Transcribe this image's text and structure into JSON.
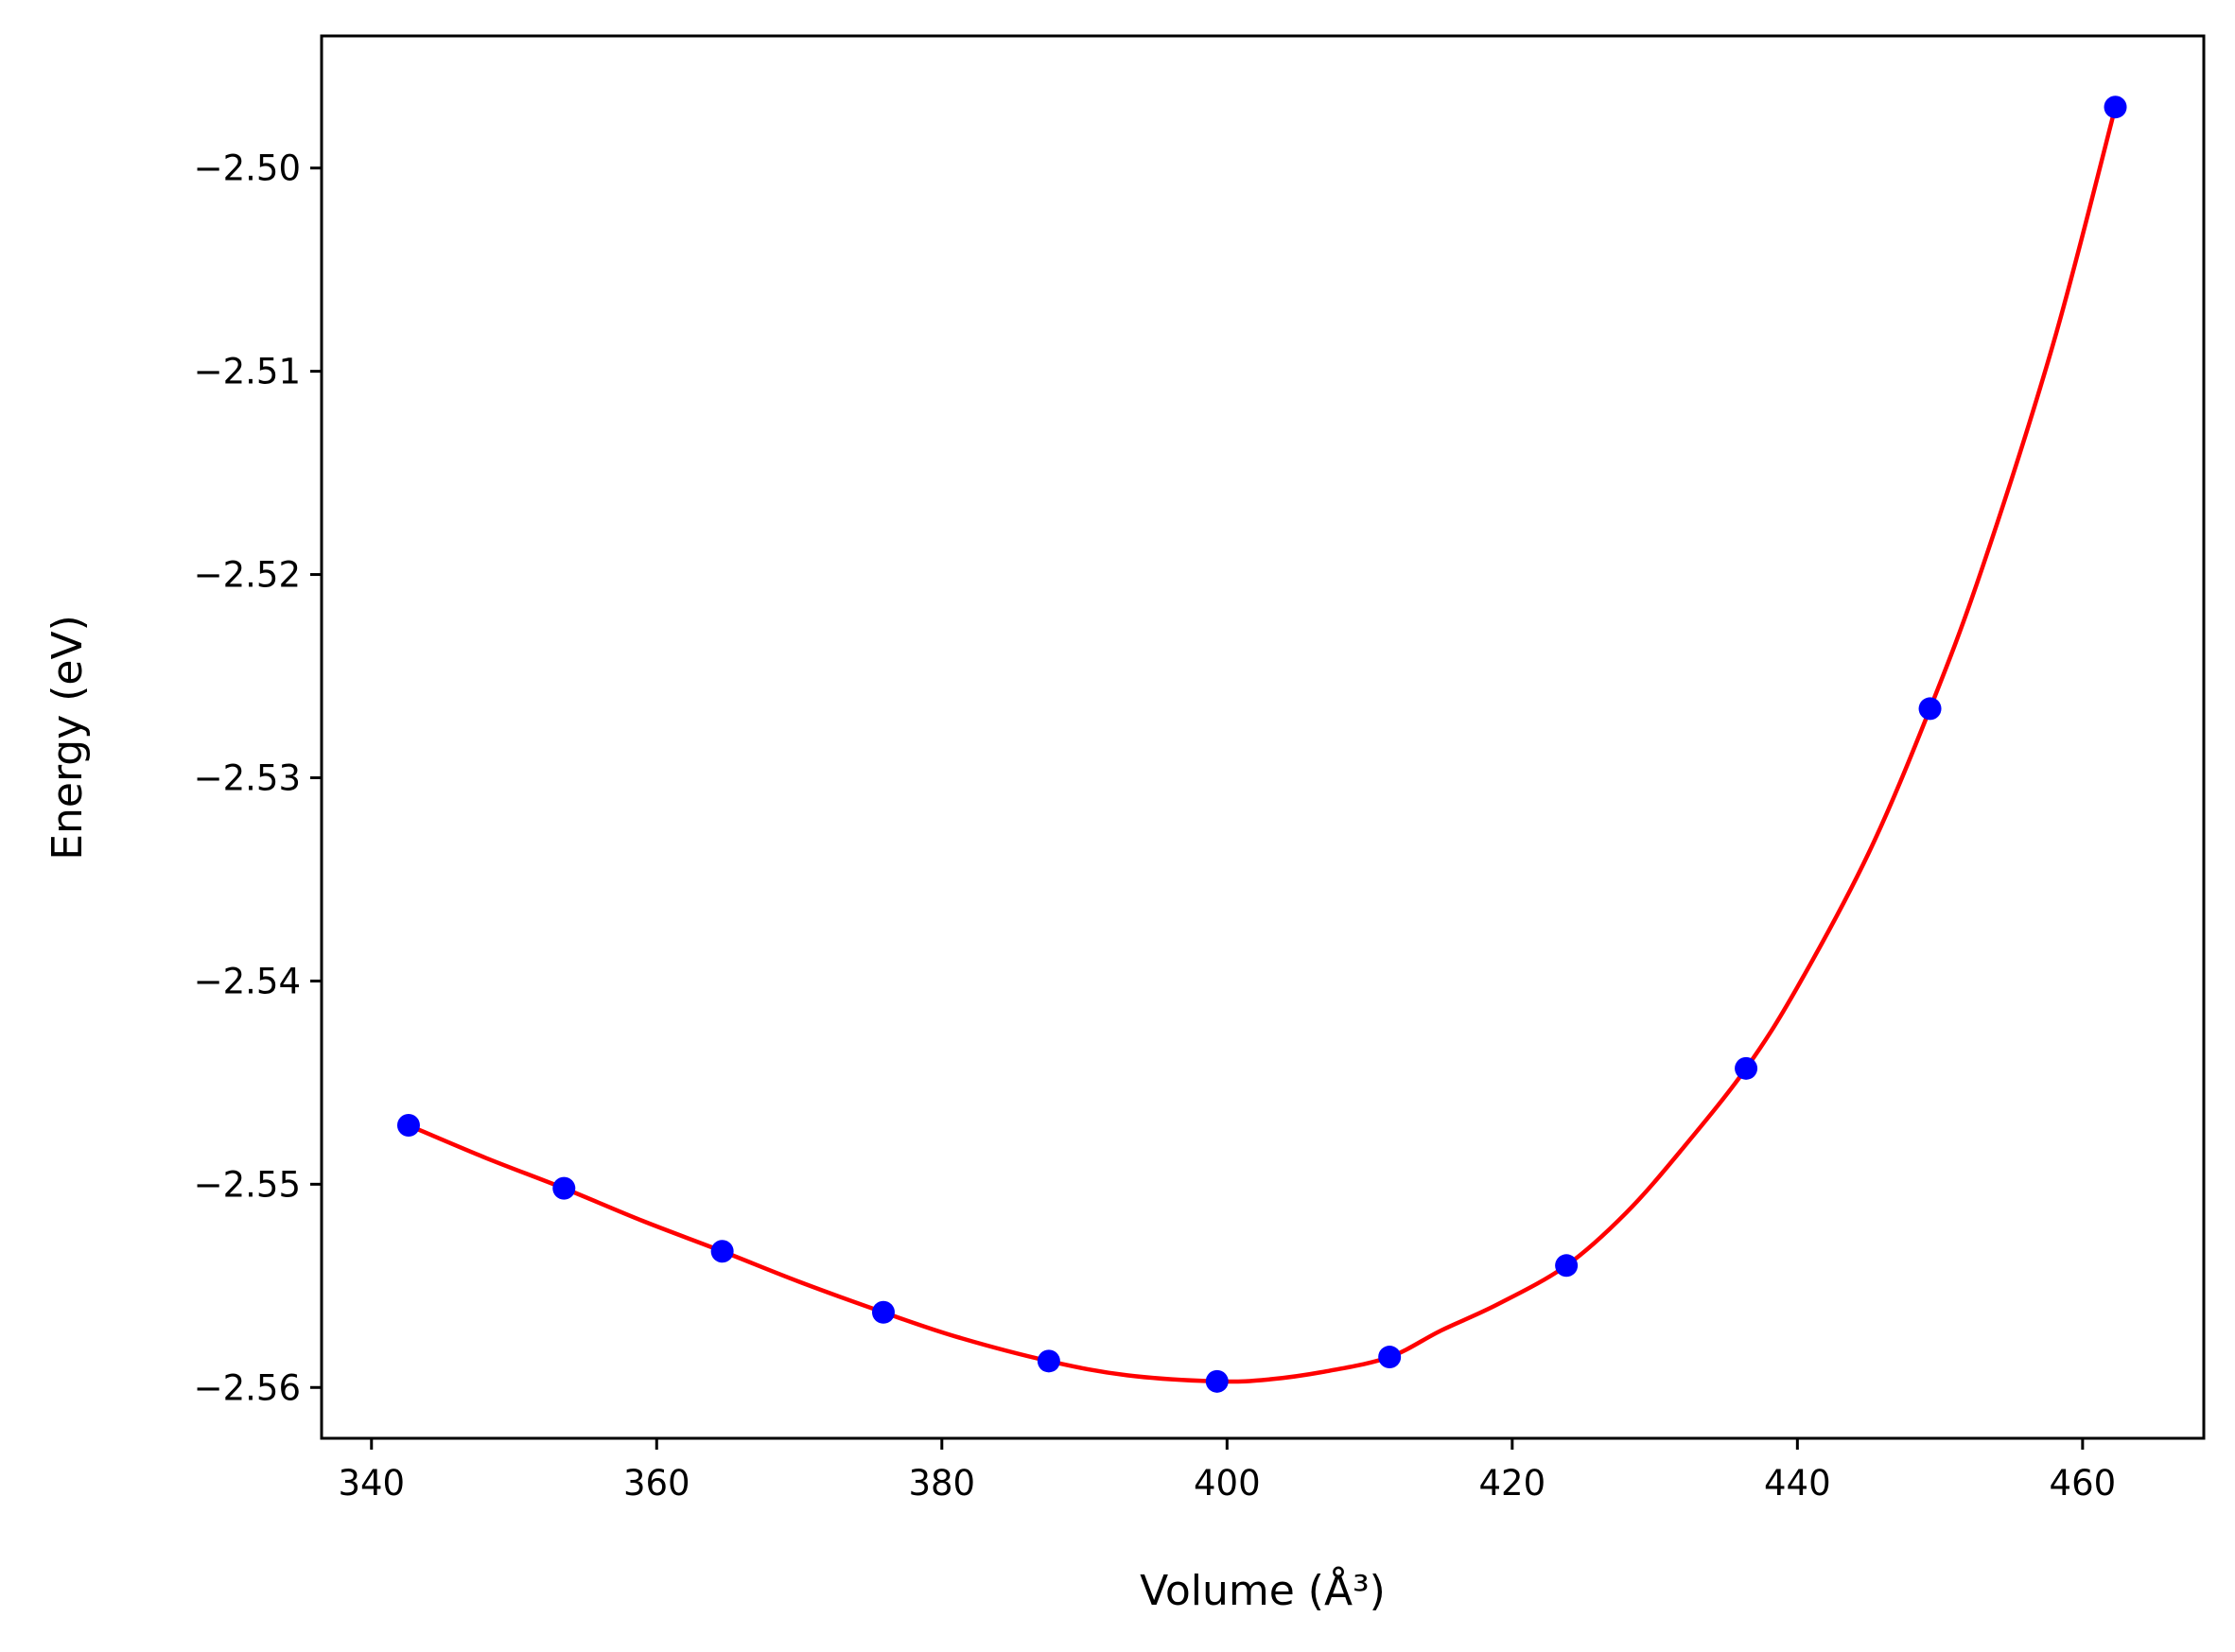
{
  "chart_data": {
    "type": "scatter",
    "xlabel": "Volume (Å³)",
    "ylabel": "Energy (eV)",
    "xlim": [
      336.5,
      468.5
    ],
    "ylim": [
      -2.5625,
      -2.4935
    ],
    "xticks": [
      340,
      360,
      380,
      400,
      420,
      440,
      460
    ],
    "yticks": [
      -2.5,
      -2.51,
      -2.52,
      -2.53,
      -2.54,
      -2.55,
      -2.56
    ],
    "xtick_labels": [
      "340",
      "360",
      "380",
      "400",
      "420",
      "440",
      "460"
    ],
    "ytick_labels": [
      "−2.50",
      "−2.51",
      "−2.52",
      "−2.53",
      "−2.54",
      "−2.55",
      "−2.56"
    ],
    "grid": false,
    "series": [
      {
        "kind": "points",
        "color": "#0000ff",
        "x": [
          342.6,
          353.5,
          364.6,
          375.9,
          387.5,
          399.3,
          411.4,
          423.8,
          436.4,
          449.3,
          462.3
        ],
        "y": [
          -2.5471,
          -2.5502,
          -2.5533,
          -2.5563,
          -2.5587,
          -2.5597,
          -2.5585,
          -2.554,
          -2.5443,
          -2.5266,
          -2.497
        ]
      },
      {
        "kind": "fit-line",
        "color": "#ff0000",
        "x": [
          342.6,
          348,
          353.5,
          359,
          364.6,
          370,
          375.9,
          381,
          387.5,
          393,
          399.3,
          403,
          407,
          411.4,
          415,
          419,
          423.8,
          428,
          432,
          436.4,
          440,
          445,
          449.3,
          453,
          458,
          462.3
        ],
        "y": [
          -2.5471,
          -2.5487,
          -2.5502,
          -2.5518,
          -2.5533,
          -2.5548,
          -2.5563,
          -2.5575,
          -2.5587,
          -2.5594,
          -2.5597,
          -2.5596,
          -2.5592,
          -2.5585,
          -2.5572,
          -2.5559,
          -2.554,
          -2.5514,
          -2.5482,
          -2.5443,
          -2.5403,
          -2.5337,
          -2.5266,
          -2.5196,
          -2.5085,
          -2.497
        ]
      }
    ]
  }
}
